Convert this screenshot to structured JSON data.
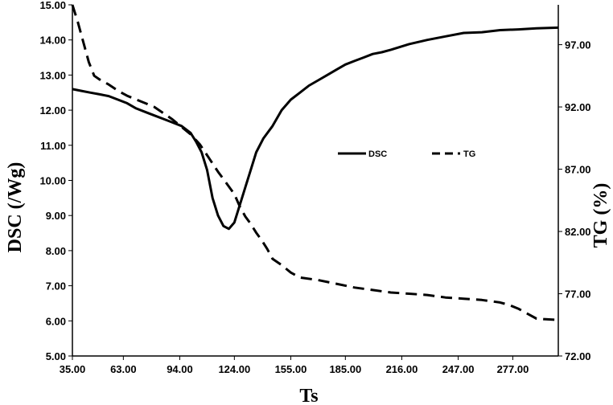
{
  "chart_data": {
    "type": "line",
    "xlabel": "Ts",
    "ylabel_left": "DSC (/Wg)",
    "ylabel_right": "TG (%)",
    "x_ticks": [
      "35.00",
      "63.00",
      "94.00",
      "124.00",
      "155.00",
      "185.00",
      "216.00",
      "247.00",
      "277.00"
    ],
    "x_tick_values": [
      35,
      63,
      94,
      124,
      155,
      185,
      216,
      247,
      277
    ],
    "xlim": [
      35,
      302
    ],
    "y_left_ticks": [
      "5.00",
      "6.00",
      "7.00",
      "8.00",
      "9.00",
      "10.00",
      "11.00",
      "12.00",
      "13.00",
      "14.00",
      "15.00"
    ],
    "ylim_left": [
      5,
      15
    ],
    "y_right_ticks": [
      "72.00",
      "77.00",
      "82.00",
      "87.00",
      "92.00",
      "97.00"
    ],
    "ylim_right": [
      72,
      100.2
    ],
    "legend_position": "center-right",
    "series": [
      {
        "name": "DSC",
        "axis": "left",
        "style": "solid",
        "color": "#000000",
        "x": [
          35,
          40,
          45,
          50,
          55,
          60,
          65,
          70,
          75,
          80,
          85,
          90,
          95,
          100,
          103,
          106,
          109,
          112,
          115,
          118,
          121,
          124,
          127,
          130,
          133,
          136,
          140,
          145,
          150,
          155,
          160,
          165,
          170,
          175,
          180,
          185,
          190,
          195,
          200,
          205,
          210,
          215,
          220,
          230,
          240,
          250,
          260,
          270,
          280,
          290,
          302
        ],
        "values": [
          12.6,
          12.55,
          12.5,
          12.45,
          12.4,
          12.3,
          12.2,
          12.05,
          11.95,
          11.85,
          11.75,
          11.65,
          11.55,
          11.35,
          11.1,
          10.8,
          10.3,
          9.5,
          9.0,
          8.7,
          8.62,
          8.8,
          9.3,
          9.8,
          10.3,
          10.8,
          11.2,
          11.55,
          12.0,
          12.3,
          12.5,
          12.7,
          12.85,
          13.0,
          13.15,
          13.3,
          13.4,
          13.5,
          13.6,
          13.65,
          13.72,
          13.8,
          13.88,
          14.0,
          14.1,
          14.2,
          14.22,
          14.28,
          14.3,
          14.33,
          14.35
        ]
      },
      {
        "name": "TG",
        "axis": "right",
        "style": "dashed",
        "color": "#000000",
        "x": [
          35,
          38,
          41,
          44,
          47,
          50,
          55,
          60,
          65,
          70,
          75,
          80,
          85,
          90,
          95,
          100,
          105,
          110,
          115,
          120,
          124,
          127,
          130,
          133,
          136,
          139,
          142,
          145,
          150,
          155,
          160,
          170,
          180,
          190,
          200,
          210,
          220,
          230,
          240,
          250,
          260,
          270,
          275,
          280,
          285,
          290,
          295,
          302
        ],
        "values": [
          100.2,
          98.8,
          97.2,
          95.6,
          94.5,
          94.2,
          93.8,
          93.3,
          92.9,
          92.6,
          92.3,
          92.0,
          91.5,
          91.0,
          90.4,
          89.8,
          89.0,
          87.9,
          86.8,
          85.8,
          85.0,
          84.0,
          83.2,
          82.6,
          81.9,
          81.3,
          80.6,
          79.8,
          79.3,
          78.7,
          78.3,
          78.1,
          77.8,
          77.5,
          77.3,
          77.1,
          77.0,
          76.9,
          76.7,
          76.6,
          76.5,
          76.3,
          76.1,
          75.8,
          75.4,
          75.0,
          74.95,
          74.9
        ]
      }
    ]
  }
}
